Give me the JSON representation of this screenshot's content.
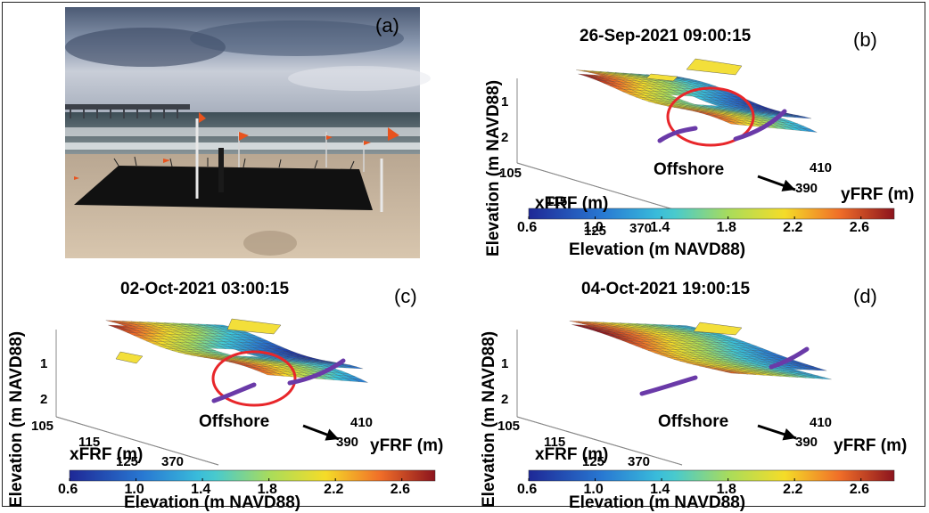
{
  "chart_data": [
    {
      "panel": "(a)",
      "type": "photo",
      "description_label": "(a)"
    },
    {
      "panel": "(b)",
      "type": "surface3d",
      "title": "26-Sep-2021 09:00:15",
      "zlabel": "Elevation (m NAVD88)",
      "xlabel": "xFRF (m)",
      "ylabel": "yFRF (m)",
      "x_ticks": [
        "105",
        "115",
        "125"
      ],
      "y_ticks": [
        "370",
        "390",
        "410"
      ],
      "z_ticks": [
        "1",
        "2"
      ],
      "annotation": "Offshore",
      "colorbar_label": "Elevation (m NAVD88)",
      "colorbar_ticks": [
        "0.6",
        "1.0",
        "1.4",
        "1.8",
        "2.2",
        "2.6"
      ],
      "colorbar_range": [
        0.6,
        2.8
      ]
    },
    {
      "panel": "(c)",
      "type": "surface3d",
      "title": "02-Oct-2021 03:00:15",
      "zlabel": "Elevation (m NAVD88)",
      "xlabel": "xFRF (m)",
      "ylabel": "yFRF (m)",
      "x_ticks": [
        "105",
        "115",
        "125"
      ],
      "y_ticks": [
        "370",
        "390",
        "410"
      ],
      "z_ticks": [
        "1",
        "2"
      ],
      "annotation": "Offshore",
      "colorbar_label": "Elevation (m NAVD88)",
      "colorbar_ticks": [
        "0.6",
        "1.0",
        "1.4",
        "1.8",
        "2.2",
        "2.6"
      ],
      "colorbar_range": [
        0.6,
        2.8
      ]
    },
    {
      "panel": "(d)",
      "type": "surface3d",
      "title": "04-Oct-2021 19:00:15",
      "zlabel": "Elevation (m NAVD88)",
      "xlabel": "xFRF (m)",
      "ylabel": "yFRF (m)",
      "x_ticks": [
        "105",
        "115",
        "125"
      ],
      "y_ticks": [
        "370",
        "390",
        "410"
      ],
      "z_ticks": [
        "1",
        "2"
      ],
      "annotation": "Offshore",
      "colorbar_label": "Elevation (m NAVD88)",
      "colorbar_ticks": [
        "0.6",
        "1.0",
        "1.4",
        "1.8",
        "2.2",
        "2.6"
      ],
      "colorbar_range": [
        0.6,
        2.8
      ]
    }
  ],
  "colors": {
    "circle": "#e8262a",
    "arc": "#6a3aa8"
  }
}
